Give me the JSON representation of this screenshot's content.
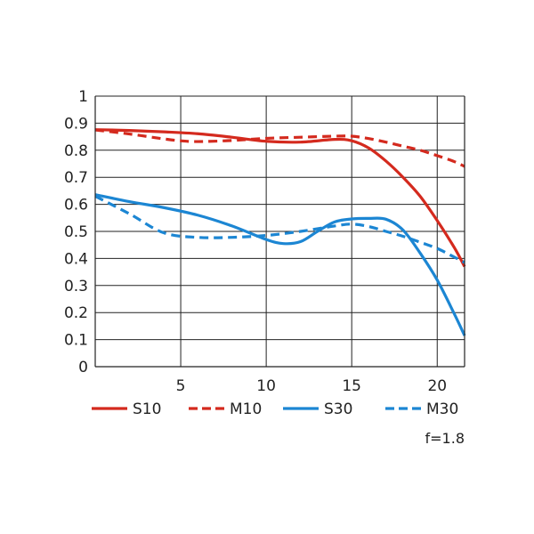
{
  "chart_data": {
    "type": "line",
    "title": "",
    "xlabel": "",
    "ylabel": "",
    "xlim": [
      0,
      21.6
    ],
    "ylim": [
      0,
      1
    ],
    "x_ticks": [
      5,
      10,
      15,
      20
    ],
    "x_tick_labels": [
      "5",
      "10",
      "15",
      "20"
    ],
    "y_ticks": [
      0,
      0.1,
      0.2,
      0.3,
      0.4,
      0.5,
      0.6,
      0.7,
      0.8,
      0.9,
      1
    ],
    "y_tick_labels": [
      "0",
      "0.1",
      "0.2",
      "0.3",
      "0.4",
      "0.5",
      "0.6",
      "0.7",
      "0.8",
      "0.9",
      "1"
    ],
    "grid": true,
    "legend_position": "bottom",
    "note": "f=1.8",
    "series": [
      {
        "name": "S10",
        "color": "#d42a1e",
        "dash": false,
        "x": [
          0,
          2,
          4,
          6,
          8,
          10,
          12,
          14,
          15,
          16,
          17,
          18,
          19,
          20,
          21,
          21.6
        ],
        "y": [
          0.876,
          0.873,
          0.868,
          0.861,
          0.848,
          0.833,
          0.83,
          0.84,
          0.835,
          0.808,
          0.76,
          0.7,
          0.63,
          0.54,
          0.44,
          0.37
        ]
      },
      {
        "name": "M10",
        "color": "#d42a1e",
        "dash": true,
        "x": [
          0,
          2,
          4,
          5,
          6,
          8,
          10,
          12,
          14,
          15,
          16,
          17,
          18,
          19,
          20,
          21,
          21.6
        ],
        "y": [
          0.875,
          0.86,
          0.842,
          0.835,
          0.832,
          0.836,
          0.844,
          0.848,
          0.852,
          0.852,
          0.843,
          0.83,
          0.815,
          0.8,
          0.78,
          0.758,
          0.74
        ]
      },
      {
        "name": "S30",
        "color": "#1c86d3",
        "dash": false,
        "x": [
          0,
          2,
          4,
          6,
          8,
          10,
          11,
          12,
          13,
          14,
          15,
          16,
          17,
          18,
          19,
          20,
          21,
          21.6
        ],
        "y": [
          0.636,
          0.61,
          0.588,
          0.56,
          0.52,
          0.47,
          0.455,
          0.462,
          0.5,
          0.535,
          0.546,
          0.548,
          0.545,
          0.505,
          0.42,
          0.32,
          0.195,
          0.115
        ]
      },
      {
        "name": "M30",
        "color": "#1c86d3",
        "dash": true,
        "x": [
          0,
          2,
          4,
          6,
          8,
          10,
          12,
          14,
          15,
          16,
          17,
          18,
          19,
          20,
          21,
          21.6
        ],
        "y": [
          0.63,
          0.565,
          0.495,
          0.478,
          0.478,
          0.485,
          0.5,
          0.52,
          0.527,
          0.518,
          0.5,
          0.482,
          0.46,
          0.437,
          0.405,
          0.385
        ]
      }
    ]
  }
}
